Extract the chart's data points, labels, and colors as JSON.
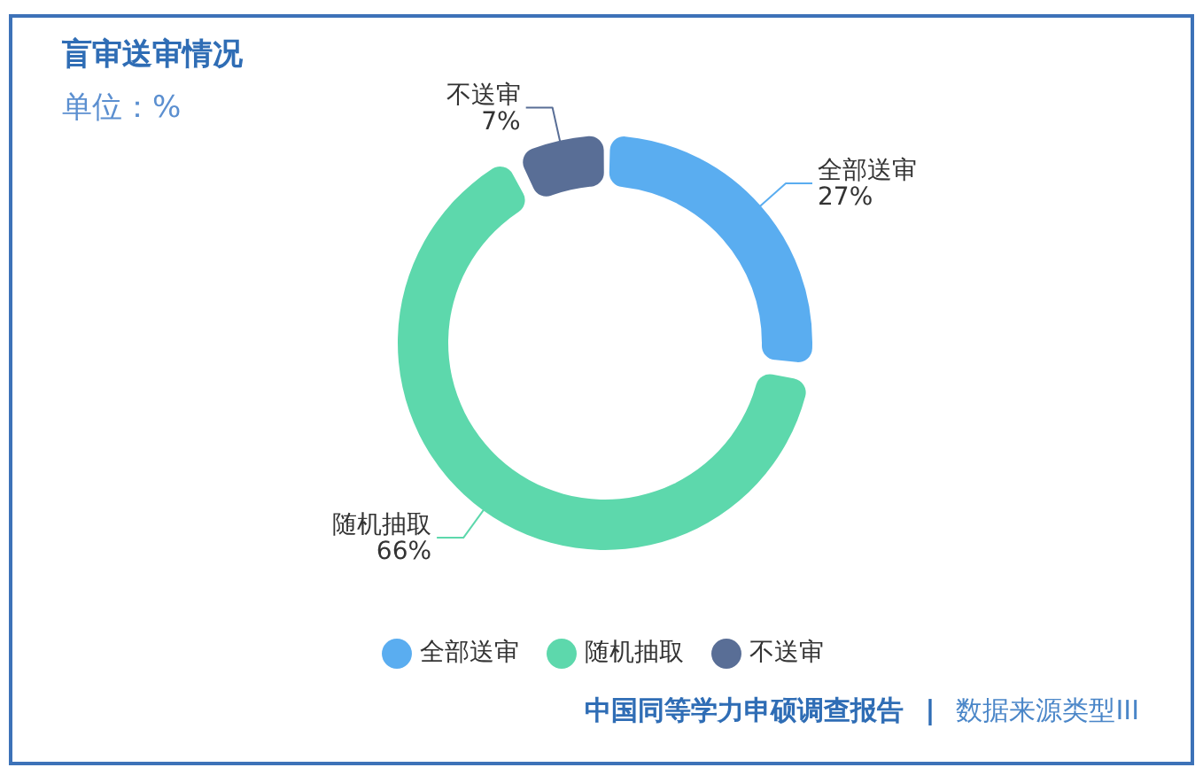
{
  "chart_data": {
    "type": "donut",
    "title": "盲审送审情况",
    "subtitle": "单位：%",
    "categories": [
      "全部送审",
      "随机抽取",
      "不送审"
    ],
    "values": [
      27,
      66,
      7
    ],
    "colors": [
      "#5aadf0",
      "#5dd8ac",
      "#596e96"
    ],
    "value_labels": [
      "27%",
      "66%",
      "7%"
    ],
    "legend": "bottom",
    "annotations": [
      "中国同等学力申硕调查报告",
      "|",
      "数据来源类型III"
    ]
  }
}
